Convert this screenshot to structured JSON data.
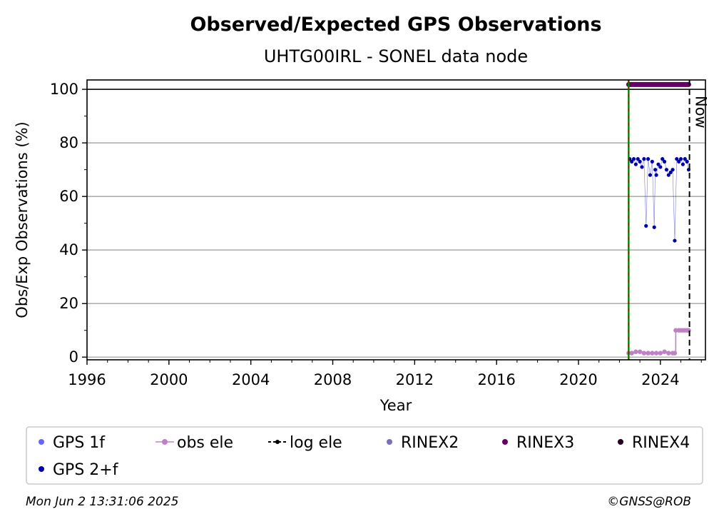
{
  "chart_data": {
    "type": "scatter",
    "title": "Observed/Expected GPS Observations",
    "subtitle": "UHTG00IRL - SONEL data node",
    "xlabel": "Year",
    "ylabel": "Obs/Exp Observations (%)",
    "xlim": [
      1996,
      2026.2
    ],
    "ylim": [
      -1,
      103.5
    ],
    "x_ticks": [
      1996,
      2000,
      2004,
      2008,
      2012,
      2016,
      2020,
      2024
    ],
    "y_ticks": [
      0,
      20,
      40,
      60,
      80,
      100
    ],
    "grid": "horizontal",
    "reference_line_y": 100,
    "markers": {
      "log_ele_start": 2022.45,
      "now_x": 2025.42,
      "now_label": "Now"
    },
    "series": [
      {
        "name": "GPS 1f",
        "color": "#6666ff",
        "x": [],
        "y": []
      },
      {
        "name": "GPS 2+f",
        "color": "#0000aa",
        "x": [
          2022.5,
          2022.6,
          2022.7,
          2022.8,
          2022.9,
          2023.0,
          2023.1,
          2023.2,
          2023.3,
          2023.4,
          2023.5,
          2023.6,
          2023.7,
          2023.75,
          2023.8,
          2023.9,
          2024.0,
          2024.1,
          2024.2,
          2024.3,
          2024.4,
          2024.5,
          2024.6,
          2024.7,
          2024.8,
          2024.9,
          2025.0,
          2025.1,
          2025.2,
          2025.3,
          2025.38
        ],
        "y": [
          74,
          73,
          74,
          72,
          74,
          73,
          71,
          74,
          49,
          74,
          68,
          73,
          48.5,
          70,
          68,
          72,
          71,
          74,
          73,
          70,
          68,
          69,
          70,
          43.5,
          74,
          73,
          74,
          72,
          74,
          73,
          70
        ]
      },
      {
        "name": "obs ele",
        "color": "#c080c8",
        "x": [
          2022.45,
          2022.6,
          2022.8,
          2023.0,
          2023.2,
          2023.4,
          2023.6,
          2023.8,
          2024.0,
          2024.2,
          2024.4,
          2024.6,
          2024.7,
          2024.75,
          2024.9,
          2025.0,
          2025.1,
          2025.2,
          2025.3,
          2025.38
        ],
        "y": [
          1.5,
          1.5,
          2,
          2,
          1.5,
          1.5,
          1.5,
          1.5,
          1.5,
          2,
          1.5,
          1.5,
          1.5,
          10,
          10,
          10,
          10,
          10,
          10,
          10
        ]
      },
      {
        "name": "log ele",
        "color": "#000000",
        "x": [],
        "y": []
      },
      {
        "name": "RINEX2",
        "color": "#7b6fb8",
        "x": [],
        "y": []
      },
      {
        "name": "RINEX3",
        "color": "#660066",
        "x": [
          2022.45,
          2025.38
        ],
        "y": [
          101.8,
          101.8
        ]
      },
      {
        "name": "RINEX4",
        "color": "#220022",
        "x": [],
        "y": []
      }
    ]
  },
  "legend": {
    "items": [
      {
        "label": "GPS 1f",
        "color": "#6666ff",
        "style": "dot"
      },
      {
        "label": "obs ele",
        "color": "#c080c8",
        "style": "line-dot"
      },
      {
        "label": "log ele",
        "color": "#000000",
        "style": "dash-dot"
      },
      {
        "label": "RINEX2",
        "color": "#7b6fb8",
        "style": "dot"
      },
      {
        "label": "RINEX3",
        "color": "#660066",
        "style": "dot"
      },
      {
        "label": "RINEX4",
        "color": "#220022",
        "style": "dot"
      },
      {
        "label": "GPS 2+f",
        "color": "#0000aa",
        "style": "dot"
      }
    ]
  },
  "footer": {
    "timestamp": "Mon Jun  2 13:31:06 2025",
    "copyright": "©GNSS@ROB"
  }
}
